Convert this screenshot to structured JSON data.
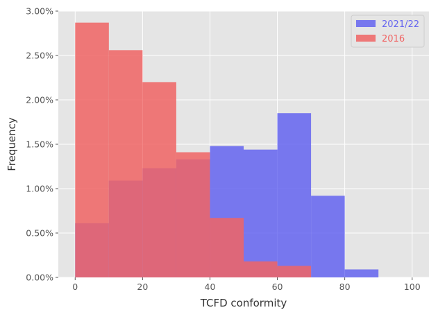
{
  "chart_data": {
    "type": "bar",
    "subtype": "overlapping-histogram",
    "title": "",
    "xlabel": "TCFD conformity",
    "ylabel": "Frequency",
    "xlim": [
      -5,
      105
    ],
    "ylim": [
      0,
      3.0
    ],
    "x_ticks": [
      0,
      20,
      40,
      60,
      80,
      100
    ],
    "y_ticks": [
      0,
      0.5,
      1.0,
      1.5,
      2.0,
      2.5,
      3.0
    ],
    "y_tick_labels": [
      "0.00%",
      "0.50%",
      "1.00%",
      "1.50%",
      "2.00%",
      "2.50%",
      "3.00%"
    ],
    "bin_edges": [
      0,
      10,
      20,
      30,
      40,
      50,
      60,
      70,
      80,
      90,
      100
    ],
    "grid": true,
    "legend_position": "top-right",
    "series": [
      {
        "name": "2021/22",
        "color": "#6464f0",
        "values": [
          0.61,
          1.09,
          1.23,
          1.33,
          1.48,
          1.44,
          1.85,
          0.92,
          0.09,
          0
        ]
      },
      {
        "name": "2016",
        "color": "#f06464",
        "values": [
          2.87,
          2.56,
          2.2,
          1.41,
          0.67,
          0.18,
          0.13,
          0,
          0,
          0
        ]
      }
    ]
  }
}
